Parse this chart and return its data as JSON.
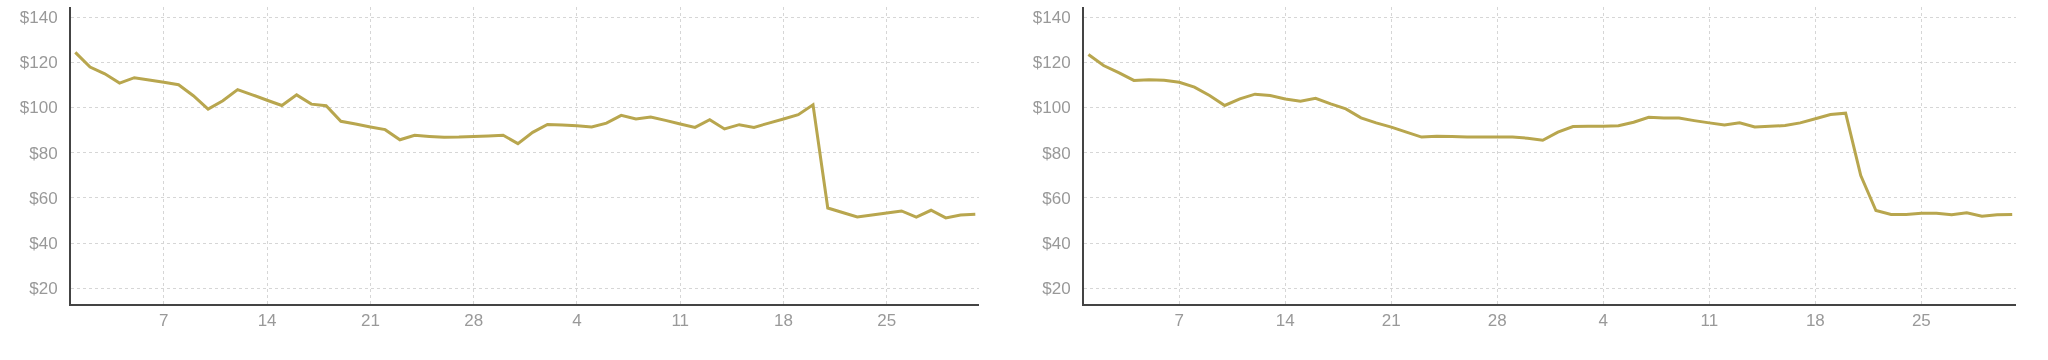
{
  "chart_data": [
    {
      "type": "line",
      "x": [
        "--07-01",
        "--07-02",
        "--07-03",
        "--07-04",
        "--07-05",
        "--07-06",
        "--07-07",
        "--07-08",
        "--07-09",
        "--07-10",
        "--07-11",
        "--07-12",
        "--07-13",
        "--07-14",
        "--07-15",
        "--07-16",
        "--07-17",
        "--07-18",
        "--07-19",
        "--07-20",
        "--07-21",
        "--07-22",
        "--07-23",
        "--07-24",
        "--07-25",
        "--07-26",
        "--07-27",
        "--07-28",
        "--07-29",
        "--07-30",
        "--07-31",
        "--08-01",
        "--08-02",
        "--08-03",
        "--08-04",
        "--08-05",
        "--08-06",
        "--08-07",
        "--08-08",
        "--08-09",
        "--08-10",
        "--08-11",
        "--08-12",
        "--08-13",
        "--08-14",
        "--08-15",
        "--08-16",
        "--08-17",
        "--08-18",
        "--08-19",
        "--08-20",
        "--08-21",
        "--08-22",
        "--08-23",
        "--08-24",
        "--08-25",
        "--08-26",
        "--08-27",
        "--08-28",
        "--08-29",
        "--08-30",
        "--08-31"
      ],
      "series": [
        {
          "color": "#b8a64e",
          "values": [
            124.4,
            117.9,
            114.9,
            110.8,
            113.2,
            112.2,
            111.2,
            110.1,
            105.2,
            99.3,
            103.0,
            107.9,
            105.6,
            103.2,
            100.9,
            105.6,
            101.5,
            100.8,
            93.9,
            92.7,
            91.4,
            90.2,
            85.7,
            87.7,
            87.2,
            86.8,
            86.9,
            87.2,
            87.4,
            87.7,
            84.0,
            89.0,
            92.5,
            92.3,
            91.9,
            91.4,
            93.1,
            96.5,
            94.9,
            95.8,
            94.3,
            92.7,
            91.2,
            94.6,
            90.5,
            92.4,
            91.2,
            93.1,
            94.9,
            96.8,
            101.2,
            55.5,
            53.5,
            51.5,
            52.4,
            53.3,
            54.2,
            51.5,
            54.5,
            51.1,
            52.4,
            52.7
          ]
        }
      ],
      "xlim": [
        "--06-30T17:00",
        "--08-31T06:00"
      ],
      "ylim": [
        13,
        144.5
      ],
      "xticks": [
        {
          "value": "--07-07",
          "label": "7"
        },
        {
          "value": "--07-14",
          "label": "14"
        },
        {
          "value": "--07-21",
          "label": "21"
        },
        {
          "value": "--07-28",
          "label": "28"
        },
        {
          "value": "--08-04",
          "label": "4"
        },
        {
          "value": "--08-11",
          "label": "11"
        },
        {
          "value": "--08-18",
          "label": "18"
        },
        {
          "value": "--08-25",
          "label": "25"
        }
      ],
      "yticks": [
        {
          "value": 20,
          "label": "$20"
        },
        {
          "value": 40,
          "label": "$40"
        },
        {
          "value": 60,
          "label": "$60"
        },
        {
          "value": 80,
          "label": "$80"
        },
        {
          "value": 100,
          "label": "$100"
        },
        {
          "value": 120,
          "label": "$120"
        },
        {
          "value": 140,
          "label": "$140"
        }
      ],
      "grid": true
    },
    {
      "type": "line",
      "x": [
        "--07-01",
        "--07-02",
        "--07-03",
        "--07-04",
        "--07-05",
        "--07-06",
        "--07-07",
        "--07-08",
        "--07-09",
        "--07-10",
        "--07-11",
        "--07-12",
        "--07-13",
        "--07-14",
        "--07-15",
        "--07-16",
        "--07-17",
        "--07-18",
        "--07-19",
        "--07-20",
        "--07-21",
        "--07-22",
        "--07-23",
        "--07-24",
        "--07-25",
        "--07-26",
        "--07-27",
        "--07-28",
        "--07-29",
        "--07-30",
        "--07-31",
        "--08-01",
        "--08-02",
        "--08-03",
        "--08-04",
        "--08-05",
        "--08-06",
        "--08-07",
        "--08-08",
        "--08-09",
        "--08-10",
        "--08-11",
        "--08-12",
        "--08-13",
        "--08-14",
        "--08-15",
        "--08-16",
        "--08-17",
        "--08-18",
        "--08-19",
        "--08-20",
        "--08-21",
        "--08-22",
        "--08-23",
        "--08-24",
        "--08-25",
        "--08-26",
        "--08-27",
        "--08-28",
        "--08-29",
        "--08-30",
        "--08-31"
      ],
      "series": [
        {
          "color": "#b8a64e",
          "values": [
            123.5,
            118.6,
            115.4,
            112.0,
            112.3,
            112.1,
            111.2,
            109.0,
            105.3,
            100.9,
            103.8,
            105.9,
            105.3,
            103.8,
            102.8,
            104.1,
            101.6,
            99.4,
            95.4,
            93.2,
            91.3,
            89.1,
            86.9,
            87.3,
            87.2,
            86.9,
            86.9,
            86.9,
            86.9,
            86.4,
            85.5,
            89.1,
            91.6,
            91.7,
            91.7,
            91.9,
            93.5,
            95.7,
            95.3,
            95.3,
            94.2,
            93.2,
            92.3,
            93.2,
            91.4,
            91.7,
            92.0,
            93.2,
            95.0,
            96.9,
            97.5,
            69.9,
            54.4,
            52.6,
            52.6,
            53.2,
            53.2,
            52.5,
            53.4,
            51.9,
            52.5,
            52.6
          ]
        }
      ],
      "xlim": [
        "--06-30T17:00",
        "--08-31T06:00"
      ],
      "ylim": [
        13,
        144.5
      ],
      "xticks": [
        {
          "value": "--07-07",
          "label": "7"
        },
        {
          "value": "--07-14",
          "label": "14"
        },
        {
          "value": "--07-21",
          "label": "21"
        },
        {
          "value": "--07-28",
          "label": "28"
        },
        {
          "value": "--08-04",
          "label": "4"
        },
        {
          "value": "--08-11",
          "label": "11"
        },
        {
          "value": "--08-18",
          "label": "18"
        },
        {
          "value": "--08-25",
          "label": "25"
        }
      ],
      "yticks": [
        {
          "value": 20,
          "label": "$20"
        },
        {
          "value": 40,
          "label": "$40"
        },
        {
          "value": 60,
          "label": "$60"
        },
        {
          "value": 80,
          "label": "$80"
        },
        {
          "value": 100,
          "label": "$100"
        },
        {
          "value": 120,
          "label": "$120"
        },
        {
          "value": 140,
          "label": "$140"
        }
      ],
      "grid": true
    }
  ]
}
